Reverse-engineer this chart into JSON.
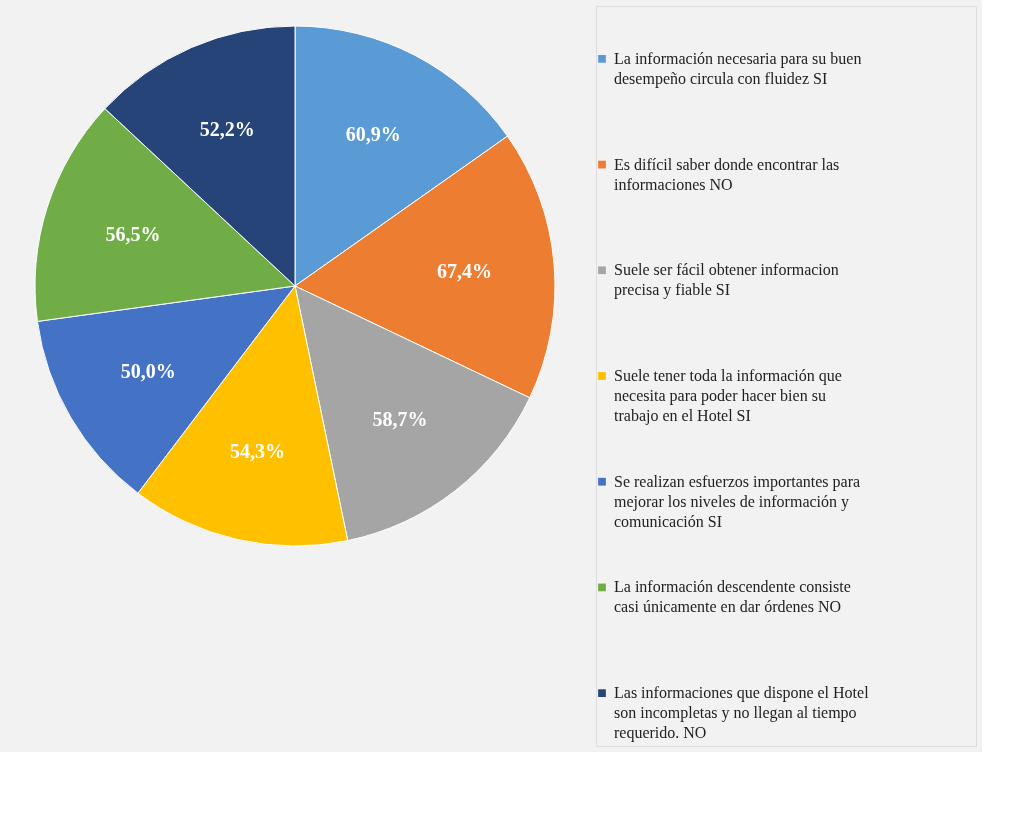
{
  "chart_data": {
    "type": "pie",
    "categories": [
      "La información necesaria para su buen desempeño circula con fluidez SI",
      "Es difícil saber donde encontrar las informaciones NO",
      "Suele ser fácil obtener informacion precisa y fiable SI",
      "Suele tener toda la información que necesita para poder hacer bien su trabajo en el Hotel SI",
      "Se realizan esfuerzos importantes para mejorar los niveles de información y comunicación SI",
      "La información descendente consiste casi únicamente en dar órdenes NO",
      "Las informaciones que dispone el Hotel son incompletas y no llegan al tiempo requerido. NO"
    ],
    "values": [
      60.9,
      67.4,
      58.7,
      54.3,
      50.0,
      56.5,
      52.2
    ],
    "value_labels": [
      "60,9%",
      "67,4%",
      "58,7%",
      "54,3%",
      "50,0%",
      "56,5%",
      "52,2%"
    ],
    "colors": [
      "#5b9bd5",
      "#ed7d31",
      "#a5a5a5",
      "#ffc000",
      "#4472c4",
      "#70ad47",
      "#264478"
    ],
    "legend": "right"
  }
}
